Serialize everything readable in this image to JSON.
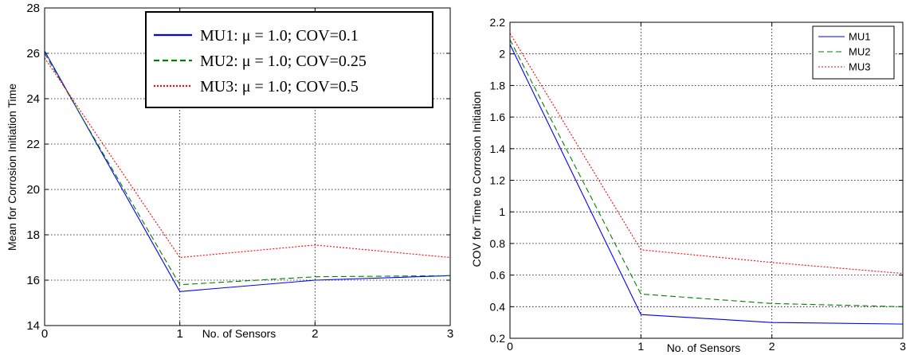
{
  "chart_data": [
    {
      "type": "line",
      "title": "",
      "xlabel": "No. of Sensors",
      "ylabel": "Mean for Corrosion Initiation Time",
      "xlim": [
        0,
        3
      ],
      "ylim": [
        14,
        28
      ],
      "xticks": [
        0,
        1,
        2,
        3
      ],
      "yticks": [
        14,
        16,
        18,
        20,
        22,
        24,
        26,
        28
      ],
      "grid": true,
      "legend_position": "top-right",
      "x": [
        0,
        1,
        2,
        3
      ],
      "series": [
        {
          "name": "MU1: μ = 1.0; COV=0.1",
          "values": [
            26.1,
            15.5,
            16.0,
            16.2
          ],
          "color": "#0000ff",
          "dash": "solid"
        },
        {
          "name": "MU2: μ = 1.0; COV=0.25",
          "values": [
            26.0,
            15.8,
            16.15,
            16.2
          ],
          "color": "#007f00",
          "dash": "dashed"
        },
        {
          "name": "MU3: μ = 1.0; COV=0.5",
          "values": [
            25.8,
            17.0,
            17.55,
            17.0
          ],
          "color": "#ff0000",
          "dash": "dotted"
        }
      ]
    },
    {
      "type": "line",
      "title": "",
      "xlabel": "No. of Sensors",
      "ylabel": "COV for Time to Corrosion Initiation",
      "xlim": [
        0,
        3
      ],
      "ylim": [
        0.2,
        2.2
      ],
      "xticks": [
        0,
        1,
        2,
        3
      ],
      "yticks": [
        0.2,
        0.4,
        0.6,
        0.8,
        1,
        1.2,
        1.4,
        1.6,
        1.8,
        2,
        2.2
      ],
      "grid": true,
      "legend_position": "top-right",
      "x": [
        0,
        1,
        2,
        3
      ],
      "series": [
        {
          "name": "MU1",
          "values": [
            2.06,
            0.35,
            0.3,
            0.29
          ],
          "color": "#0000ff",
          "dash": "solid"
        },
        {
          "name": "MU2",
          "values": [
            2.09,
            0.48,
            0.42,
            0.4
          ],
          "color": "#007f00",
          "dash": "dashed"
        },
        {
          "name": "MU3",
          "values": [
            2.13,
            0.76,
            0.68,
            0.61
          ],
          "color": "#ff0000",
          "dash": "dotted"
        }
      ]
    }
  ]
}
